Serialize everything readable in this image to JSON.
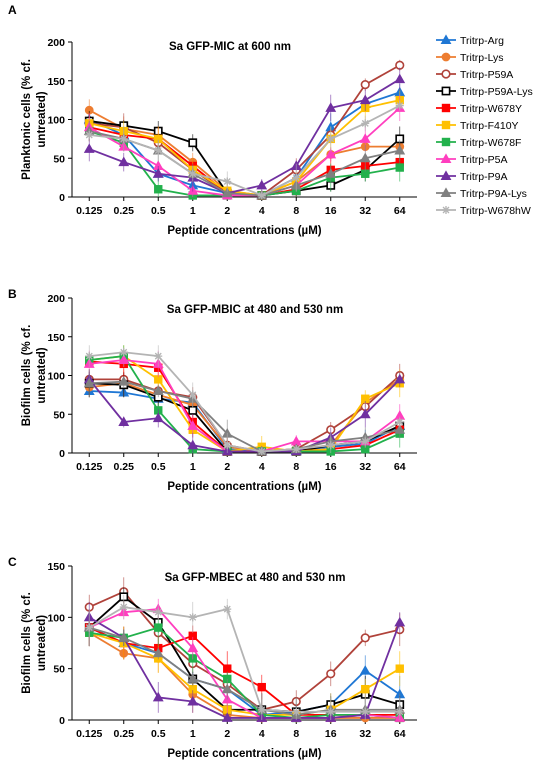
{
  "panels": [
    "A",
    "B",
    "C"
  ],
  "legend": {
    "entries": [
      {
        "name": "Tritrp-Arg",
        "color": "#1f77d4",
        "marker": "triangle",
        "fill": "filled"
      },
      {
        "name": "Tritrp-Lys",
        "color": "#ed7d31",
        "marker": "circle",
        "fill": "filled"
      },
      {
        "name": "Tritrp-P59A",
        "color": "#b0423a",
        "marker": "circle",
        "fill": "open"
      },
      {
        "name": "Tritrp-P59A-Lys",
        "color": "#000000",
        "marker": "square",
        "fill": "open"
      },
      {
        "name": "Tritrp-W678Y",
        "color": "#ff0000",
        "marker": "square",
        "fill": "filled"
      },
      {
        "name": "Tritrp-F410Y",
        "color": "#ffc000",
        "marker": "square",
        "fill": "filled"
      },
      {
        "name": "Tritrp-W678F",
        "color": "#22b14c",
        "marker": "square",
        "fill": "filled"
      },
      {
        "name": "Tritrp-P5A",
        "color": "#ff3fbf",
        "marker": "triangle",
        "fill": "filled"
      },
      {
        "name": "Tritrp-P9A",
        "color": "#7030a0",
        "marker": "triangle",
        "fill": "filled"
      },
      {
        "name": "Tritrp-P9A-Lys",
        "color": "#808080",
        "marker": "triangle",
        "fill": "filled"
      },
      {
        "name": "Tritrp-W678hW",
        "color": "#b4b4b4",
        "marker": "star",
        "fill": "filled"
      }
    ]
  },
  "chart_data": [
    {
      "panel": "A",
      "type": "line",
      "title": "Sa GFP-MIC at 600 nm",
      "xlabel": "Peptide concentrations (µM)",
      "ylabel": "Planktonic cells (% cf. untreated)",
      "categories": [
        "0.125",
        "0.25",
        "0.5",
        "1",
        "2",
        "4",
        "8",
        "16",
        "32",
        "64"
      ],
      "ylim": [
        0,
        200
      ],
      "yticks": [
        0,
        50,
        100,
        150,
        200
      ],
      "legend_position": "right",
      "series": [
        {
          "name": "Tritrp-Arg",
          "values": [
            100,
            80,
            30,
            15,
            5,
            2,
            25,
            90,
            120,
            135
          ]
        },
        {
          "name": "Tritrp-Lys",
          "values": [
            112,
            88,
            80,
            45,
            8,
            2,
            20,
            55,
            65,
            65
          ]
        },
        {
          "name": "Tritrp-P59A",
          "values": [
            95,
            90,
            70,
            35,
            5,
            2,
            35,
            80,
            145,
            170
          ]
        },
        {
          "name": "Tritrp-P59A-Lys",
          "values": [
            98,
            92,
            85,
            70,
            5,
            2,
            8,
            15,
            35,
            75
          ]
        },
        {
          "name": "Tritrp-W678Y",
          "values": [
            90,
            80,
            75,
            40,
            5,
            2,
            10,
            35,
            40,
            45
          ]
        },
        {
          "name": "Tritrp-F410Y",
          "values": [
            95,
            85,
            75,
            35,
            8,
            2,
            20,
            75,
            115,
            125
          ]
        },
        {
          "name": "Tritrp-W678F",
          "values": [
            85,
            70,
            10,
            2,
            2,
            2,
            8,
            25,
            30,
            38
          ]
        },
        {
          "name": "Tritrp-P5A",
          "values": [
            90,
            65,
            40,
            8,
            2,
            2,
            15,
            55,
            75,
            115
          ]
        },
        {
          "name": "Tritrp-P9A",
          "values": [
            62,
            45,
            30,
            25,
            5,
            15,
            40,
            115,
            125,
            152
          ]
        },
        {
          "name": "Tritrp-P9A-Lys",
          "values": [
            85,
            75,
            60,
            30,
            5,
            2,
            15,
            30,
            50,
            60
          ]
        },
        {
          "name": "Tritrp-W678hW",
          "values": [
            80,
            75,
            60,
            30,
            20,
            2,
            25,
            75,
            95,
            118
          ]
        }
      ]
    },
    {
      "panel": "B",
      "type": "line",
      "title": "Sa GFP-MBIC at 480 and 530 nm",
      "xlabel": "Peptide concentrations (µM)",
      "ylabel": "Biofilm cells (% cf. untreated)",
      "categories": [
        "0.125",
        "0.25",
        "0.5",
        "1",
        "2",
        "4",
        "8",
        "16",
        "32",
        "64"
      ],
      "ylim": [
        0,
        200
      ],
      "yticks": [
        0,
        50,
        100,
        150,
        200
      ],
      "series": [
        {
          "name": "Tritrp-Arg",
          "values": [
            80,
            78,
            70,
            65,
            5,
            2,
            3,
            8,
            12,
            35
          ]
        },
        {
          "name": "Tritrp-Lys",
          "values": [
            85,
            90,
            75,
            62,
            8,
            2,
            5,
            10,
            65,
            95
          ]
        },
        {
          "name": "Tritrp-P59A",
          "values": [
            95,
            95,
            80,
            72,
            10,
            2,
            5,
            30,
            60,
            100
          ]
        },
        {
          "name": "Tritrp-P59A-Lys",
          "values": [
            90,
            88,
            72,
            55,
            2,
            2,
            2,
            10,
            15,
            35
          ]
        },
        {
          "name": "Tritrp-W678Y",
          "values": [
            118,
            115,
            110,
            40,
            2,
            2,
            2,
            5,
            10,
            30
          ]
        },
        {
          "name": "Tritrp-F410Y",
          "values": [
            120,
            125,
            95,
            30,
            2,
            8,
            2,
            5,
            70,
            90
          ]
        },
        {
          "name": "Tritrp-W678F",
          "values": [
            120,
            125,
            55,
            5,
            2,
            2,
            2,
            2,
            5,
            25
          ]
        },
        {
          "name": "Tritrp-P5A",
          "values": [
            115,
            120,
            115,
            35,
            2,
            2,
            15,
            15,
            15,
            48
          ]
        },
        {
          "name": "Tritrp-P9A",
          "values": [
            95,
            40,
            45,
            10,
            2,
            2,
            2,
            20,
            50,
            95
          ]
        },
        {
          "name": "Tritrp-P9A-Lys",
          "values": [
            90,
            92,
            80,
            70,
            25,
            2,
            5,
            15,
            20,
            30
          ]
        },
        {
          "name": "Tritrp-W678hW",
          "values": [
            125,
            130,
            125,
            75,
            10,
            2,
            5,
            10,
            15,
            40
          ]
        }
      ]
    },
    {
      "panel": "C",
      "type": "line",
      "title": "Sa GFP-MBEC at 480 and 530 nm",
      "xlabel": "Peptide concentrations (µM)",
      "ylabel": "Biofilm cells (% cf. untreated)",
      "categories": [
        "0.125",
        "0.25",
        "0.5",
        "1",
        "2",
        "4",
        "8",
        "16",
        "32",
        "64"
      ],
      "ylim": [
        0,
        150
      ],
      "yticks": [
        0,
        50,
        100,
        150
      ],
      "series": [
        {
          "name": "Tritrp-Arg",
          "values": [
            90,
            75,
            65,
            40,
            30,
            5,
            8,
            15,
            48,
            25
          ]
        },
        {
          "name": "Tritrp-Lys",
          "values": [
            85,
            65,
            60,
            25,
            5,
            2,
            2,
            2,
            2,
            2
          ]
        },
        {
          "name": "Tritrp-P59A",
          "values": [
            110,
            125,
            85,
            55,
            35,
            10,
            18,
            45,
            80,
            88
          ]
        },
        {
          "name": "Tritrp-P59A-Lys",
          "values": [
            90,
            120,
            95,
            40,
            10,
            10,
            8,
            15,
            25,
            15
          ]
        },
        {
          "name": "Tritrp-W678Y",
          "values": [
            90,
            75,
            70,
            82,
            50,
            32,
            5,
            5,
            5,
            5
          ]
        },
        {
          "name": "Tritrp-F410Y",
          "values": [
            85,
            75,
            60,
            30,
            10,
            5,
            5,
            10,
            30,
            50
          ]
        },
        {
          "name": "Tritrp-W678F",
          "values": [
            85,
            80,
            90,
            60,
            40,
            5,
            2,
            5,
            5,
            2
          ]
        },
        {
          "name": "Tritrp-P5A",
          "values": [
            90,
            105,
            108,
            70,
            20,
            2,
            2,
            2,
            5,
            2
          ]
        },
        {
          "name": "Tritrp-P9A",
          "values": [
            100,
            80,
            22,
            18,
            2,
            2,
            2,
            2,
            5,
            95
          ]
        },
        {
          "name": "Tritrp-P9A-Lys",
          "values": [
            90,
            80,
            65,
            40,
            30,
            10,
            5,
            10,
            10,
            10
          ]
        },
        {
          "name": "Tritrp-W678hW",
          "values": [
            90,
            110,
            105,
            100,
            108,
            10,
            8,
            8,
            8,
            8
          ]
        }
      ]
    }
  ]
}
